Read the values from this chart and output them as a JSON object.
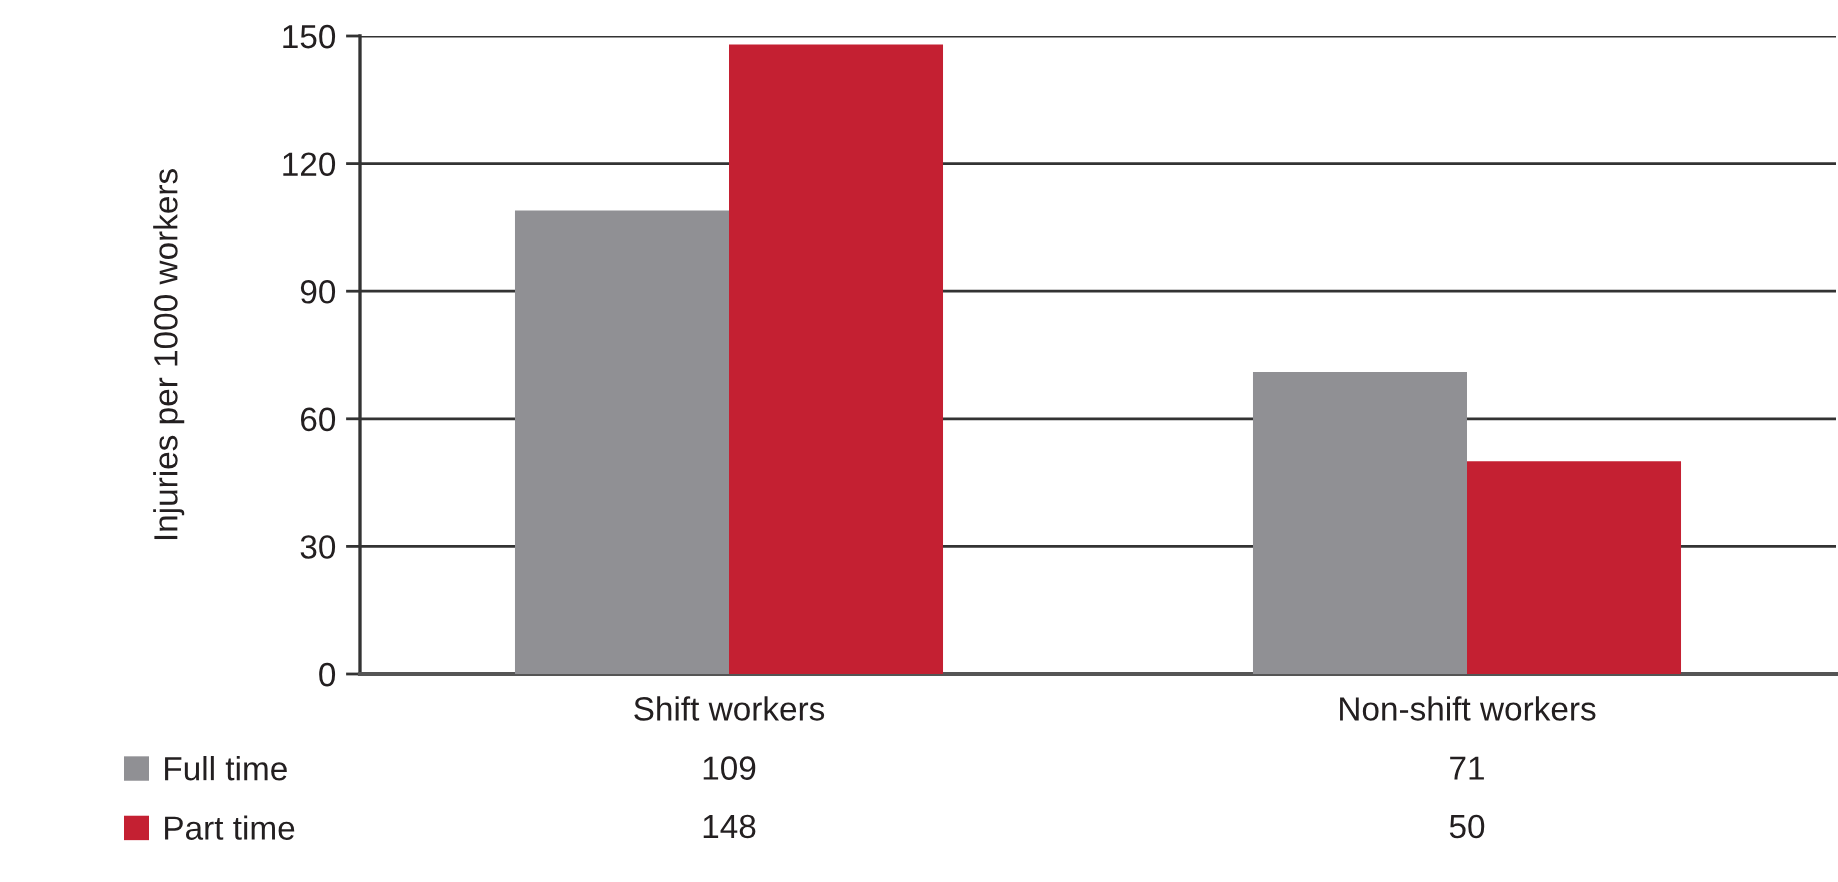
{
  "chart_data": {
    "type": "bar",
    "ylabel": "Injuries per 1000 workers",
    "categories": [
      "Shift workers",
      "Non-shift workers"
    ],
    "series": [
      {
        "name": "Full time",
        "color": "#909094",
        "values": [
          109,
          71
        ]
      },
      {
        "name": "Part time",
        "color": "#c42032",
        "values": [
          148,
          50
        ]
      }
    ],
    "ylim": [
      0,
      150
    ],
    "yticks": [
      0,
      30,
      60,
      90,
      120,
      150
    ],
    "grid": "y",
    "legend": "bottom left",
    "data_labels": true
  }
}
